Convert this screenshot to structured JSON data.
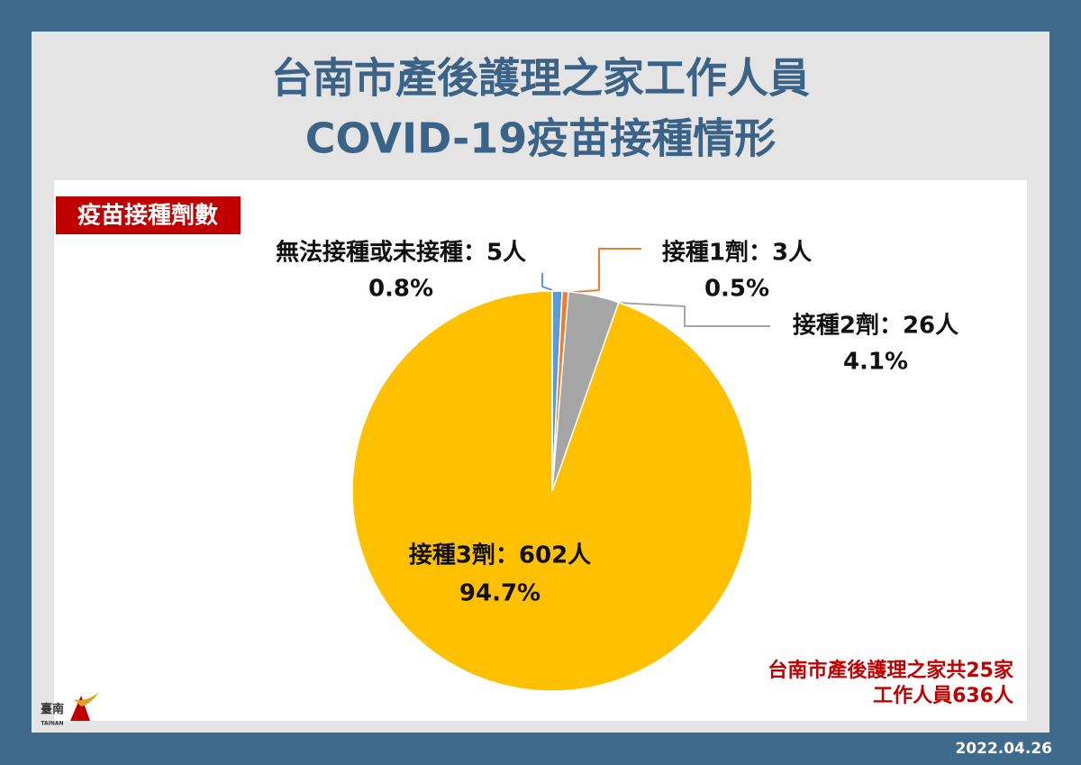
{
  "header": {
    "title_lines": [
      "台南市產後護理之家工作人員",
      "COVID-19疫苗接種情形"
    ]
  },
  "badge": "疫苗接種劑數",
  "note_lines": [
    "台南市產後護理之家共25家",
    "工作人員636人"
  ],
  "logo": {
    "name": "臺南",
    "sub": "TAINAN"
  },
  "date": "2022.04.26",
  "chart_data": {
    "type": "pie",
    "labels": [
      "無法接種或未接種：5人",
      "接種1劑：3人",
      "接種2劑：26人",
      "接種3劑：602人"
    ],
    "values": [
      0.8,
      0.5,
      4.1,
      94.7
    ],
    "value_labels": [
      "0.8%",
      "0.5%",
      "4.1%",
      "94.7%"
    ],
    "colors": [
      "#5b9bd5",
      "#ed7d31",
      "#a5a5a5",
      "#ffc000"
    ]
  }
}
